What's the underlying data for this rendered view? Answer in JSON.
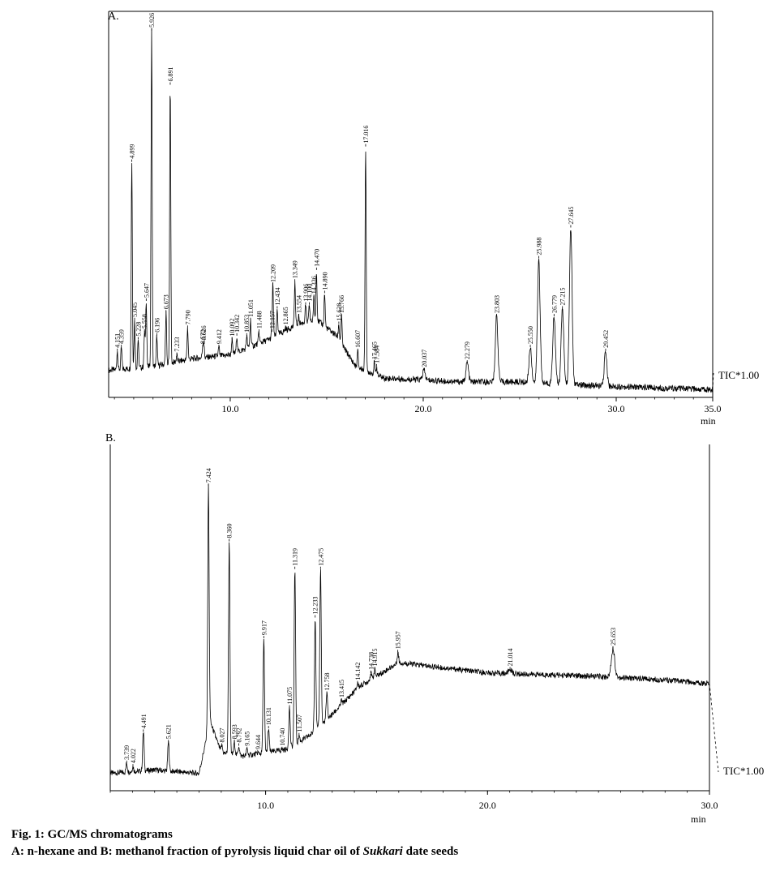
{
  "caption": {
    "line1": "Fig. 1: GC/MS chromatograms",
    "line2_prefix": "A: n-hexane and B: methanol fraction of pyrolysis liquid char oil of ",
    "line2_italic": "Sukkari",
    "line2_suffix": " date seeds"
  },
  "chart_data": [
    {
      "type": "line",
      "panel_label": "A.",
      "series_label": "TIC*1.00",
      "xlabel": "min",
      "xlim": [
        3.7,
        35.0
      ],
      "ylim": [
        0,
        100
      ],
      "xticks": [
        10.0,
        20.0,
        30.0,
        35.0
      ],
      "tick_labels": [
        "10.0",
        "20.0",
        "30.0",
        "35.0"
      ],
      "baseline": [
        [
          3.7,
          7
        ],
        [
          6,
          8
        ],
        [
          8,
          10
        ],
        [
          10,
          11
        ],
        [
          12,
          15
        ],
        [
          13.5,
          19
        ],
        [
          14.5,
          20
        ],
        [
          15.5,
          16
        ],
        [
          16.5,
          8
        ],
        [
          18,
          5
        ],
        [
          22,
          4
        ],
        [
          25,
          4
        ],
        [
          29,
          3
        ],
        [
          35,
          2
        ]
      ],
      "peaks": [
        {
          "rt": 4.151,
          "label": "4.151",
          "height": 12
        },
        {
          "rt": 4.359,
          "label": "4.359",
          "height": 13
        },
        {
          "rt": 4.899,
          "label": "4.899",
          "height": 61
        },
        {
          "rt": 5.045,
          "label": "5.045",
          "height": 20
        },
        {
          "rt": 5.228,
          "label": "5.228",
          "height": 15
        },
        {
          "rt": 5.558,
          "label": "5.558",
          "height": 17
        },
        {
          "rt": 5.647,
          "label": "5.647",
          "height": 25
        },
        {
          "rt": 5.926,
          "label": "5.926",
          "height": 95
        },
        {
          "rt": 6.196,
          "label": "6.196",
          "height": 16
        },
        {
          "rt": 6.673,
          "label": "6.673",
          "height": 22
        },
        {
          "rt": 6.891,
          "label": "6.891",
          "height": 81
        },
        {
          "rt": 7.233,
          "label": "7.233",
          "height": 11
        },
        {
          "rt": 7.79,
          "label": "7.790",
          "height": 18
        },
        {
          "rt": 8.572,
          "label": "8.572",
          "height": 13
        },
        {
          "rt": 8.626,
          "label": "8.626",
          "height": 14
        },
        {
          "rt": 9.412,
          "label": "9.412",
          "height": 13
        },
        {
          "rt": 10.092,
          "label": "10.092",
          "height": 15
        },
        {
          "rt": 10.342,
          "label": "10.342",
          "height": 16
        },
        {
          "rt": 10.853,
          "label": "10.853",
          "height": 16
        },
        {
          "rt": 11.051,
          "label": "11.051",
          "height": 20
        },
        {
          "rt": 11.488,
          "label": "11.488",
          "height": 17
        },
        {
          "rt": 12.157,
          "label": "12.157",
          "height": 17
        },
        {
          "rt": 12.209,
          "label": "12.209",
          "height": 29
        },
        {
          "rt": 12.434,
          "label": "12.434",
          "height": 23
        },
        {
          "rt": 12.865,
          "label": "12.865",
          "height": 18
        },
        {
          "rt": 13.349,
          "label": "13.349",
          "height": 30
        },
        {
          "rt": 13.554,
          "label": "13.554",
          "height": 21
        },
        {
          "rt": 13.906,
          "label": "13.906",
          "height": 24
        },
        {
          "rt": 14.1,
          "label": "14.100",
          "height": 24
        },
        {
          "rt": 14.336,
          "label": "14.336",
          "height": 26
        },
        {
          "rt": 14.47,
          "label": "14.470",
          "height": 33
        },
        {
          "rt": 14.89,
          "label": "14.890",
          "height": 27
        },
        {
          "rt": 15.628,
          "label": "15.628",
          "height": 19
        },
        {
          "rt": 15.766,
          "label": "15.766",
          "height": 21
        },
        {
          "rt": 16.607,
          "label": "16.607",
          "height": 12
        },
        {
          "rt": 17.016,
          "label": "17.016",
          "height": 65
        },
        {
          "rt": 17.465,
          "label": "17.465",
          "height": 9
        },
        {
          "rt": 17.584,
          "label": "17.584",
          "height": 8
        },
        {
          "rt": 20.037,
          "label": "20.037",
          "height": 7
        },
        {
          "rt": 22.279,
          "label": "22.279",
          "height": 9
        },
        {
          "rt": 23.803,
          "label": "23.803",
          "height": 21
        },
        {
          "rt": 25.55,
          "label": "25.550",
          "height": 13
        },
        {
          "rt": 25.988,
          "label": "25.988",
          "height": 36
        },
        {
          "rt": 26.779,
          "label": "26.779",
          "height": 21
        },
        {
          "rt": 27.215,
          "label": "27.215",
          "height": 23
        },
        {
          "rt": 27.645,
          "label": "27.645",
          "height": 44
        },
        {
          "rt": 29.452,
          "label": "29.452",
          "height": 12
        }
      ]
    },
    {
      "type": "line",
      "panel_label": "B.",
      "series_label": "TIC*1.00",
      "xlabel": "min",
      "xlim": [
        3.0,
        30.0
      ],
      "ylim": [
        0,
        100
      ],
      "xticks": [
        10.0,
        20.0,
        30.0
      ],
      "tick_labels": [
        "10.0",
        "20.0",
        "30.0"
      ],
      "baseline": [
        [
          3.0,
          5
        ],
        [
          5,
          6
        ],
        [
          7,
          5
        ],
        [
          7.5,
          20
        ],
        [
          8.0,
          11
        ],
        [
          9,
          10
        ],
        [
          10,
          11
        ],
        [
          11,
          12
        ],
        [
          12,
          16
        ],
        [
          13,
          22
        ],
        [
          14.2,
          30
        ],
        [
          16,
          37
        ],
        [
          20,
          34
        ],
        [
          25,
          33
        ],
        [
          28,
          32
        ],
        [
          29.7,
          31
        ]
      ],
      "peaks": [
        {
          "rt": 3.739,
          "label": "3.739",
          "height": 8
        },
        {
          "rt": 4.022,
          "label": "4.022",
          "height": 7
        },
        {
          "rt": 4.491,
          "label": "4.491",
          "height": 17
        },
        {
          "rt": 5.621,
          "label": "5.621",
          "height": 14
        },
        {
          "rt": 7.424,
          "label": "7.424",
          "height": 88
        },
        {
          "rt": 8.027,
          "label": "8.027",
          "height": 13
        },
        {
          "rt": 8.36,
          "label": "8.360",
          "height": 72
        },
        {
          "rt": 8.593,
          "label": "8.593",
          "height": 14
        },
        {
          "rt": 8.792,
          "label": "8.792",
          "height": 13
        },
        {
          "rt": 9.165,
          "label": "9.165",
          "height": 12
        },
        {
          "rt": 9.644,
          "label": "9.644",
          "height": 11
        },
        {
          "rt": 9.917,
          "label": "9.917",
          "height": 44
        },
        {
          "rt": 10.131,
          "label": "10.131",
          "height": 18
        },
        {
          "rt": 10.74,
          "label": "10.740",
          "height": 12
        },
        {
          "rt": 11.075,
          "label": "11.075",
          "height": 24
        },
        {
          "rt": 11.319,
          "label": "11.319",
          "height": 64
        },
        {
          "rt": 11.507,
          "label": "11.507",
          "height": 16
        },
        {
          "rt": 12.233,
          "label": "12.233",
          "height": 50
        },
        {
          "rt": 12.475,
          "label": "12.475",
          "height": 64
        },
        {
          "rt": 12.758,
          "label": "12.758",
          "height": 28
        },
        {
          "rt": 13.415,
          "label": "13.415",
          "height": 26
        },
        {
          "rt": 14.142,
          "label": "14.142",
          "height": 31
        },
        {
          "rt": 14.738,
          "label": "14.738",
          "height": 34
        },
        {
          "rt": 14.915,
          "label": "14.915",
          "height": 35
        },
        {
          "rt": 15.957,
          "label": "15.957",
          "height": 40
        },
        {
          "rt": 21.014,
          "label": "21.014",
          "height": 35
        },
        {
          "rt": 25.653,
          "label": "25.653",
          "height": 41
        }
      ]
    }
  ]
}
